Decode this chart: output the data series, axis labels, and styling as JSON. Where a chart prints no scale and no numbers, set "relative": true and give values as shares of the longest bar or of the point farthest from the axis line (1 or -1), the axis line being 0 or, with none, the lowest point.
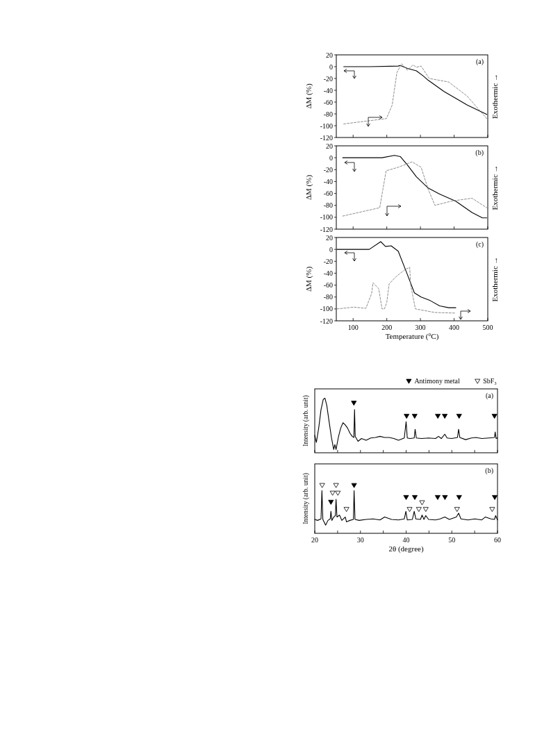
{
  "chart_data": [
    {
      "type": "line",
      "ylabel": "ΔM  (%)",
      "y2label": "Exothermic →",
      "annotations": [
        "(a)"
      ],
      "xlim": [
        50,
        500
      ],
      "xticks": [
        100,
        200,
        300,
        400,
        500
      ],
      "ylim": [
        -120,
        20
      ],
      "yticks": [
        -120,
        -100,
        -80,
        -60,
        -40,
        -20,
        0,
        20
      ],
      "tick_labels": "y",
      "series": [
        {
          "color": "#000000",
          "line_style": "solid",
          "x": [
            72,
            150,
            234,
            240,
            261,
            288,
            309,
            323,
            370,
            439,
            497
          ],
          "values": [
            0,
            0,
            1,
            2,
            -3,
            -7,
            -16,
            -23,
            -42,
            -65,
            -81
          ]
        },
        {
          "color": "#808080",
          "line_style": "dashed",
          "x": [
            72,
            199,
            216,
            230,
            244,
            261,
            278,
            288,
            302,
            326,
            384,
            439,
            497
          ],
          "values": [
            -97,
            -88,
            -65,
            -10,
            5,
            -6,
            3,
            -1,
            1,
            -20,
            -26,
            -50,
            -88
          ]
        }
      ]
    },
    {
      "type": "line",
      "ylabel": "ΔM  (%)",
      "y2label": "Exothermic →",
      "annotations": [
        "(b)"
      ],
      "xlim": [
        50,
        500
      ],
      "xticks": [
        100,
        200,
        300,
        400,
        500
      ],
      "ylim": [
        -120,
        20
      ],
      "yticks": [
        -120,
        -100,
        -80,
        -60,
        -40,
        -20,
        0,
        20
      ],
      "tick_labels": "y",
      "series": [
        {
          "color": "#000000",
          "line_style": "solid",
          "x": [
            69,
            186,
            223,
            240,
            261,
            288,
            323,
            357,
            405,
            453,
            484,
            497
          ],
          "values": [
            0,
            0,
            4,
            2,
            -12,
            -32,
            -51,
            -61,
            -73,
            -92,
            -101,
            -101
          ]
        },
        {
          "color": "#808080",
          "line_style": "dashed",
          "x": [
            69,
            179,
            198,
            234,
            275,
            302,
            323,
            343,
            391,
            453,
            497
          ],
          "values": [
            -98,
            -84,
            -22,
            -16,
            -7,
            -16,
            -53,
            -80,
            -73,
            -68,
            -84
          ]
        }
      ]
    },
    {
      "type": "line",
      "xlabel": "Temperature ($^{o}$C)",
      "ylabel": "ΔM  (%)",
      "y2label": "Exothermic →",
      "annotations": [
        "(c)"
      ],
      "xlim": [
        50,
        500
      ],
      "xticks": [
        100,
        200,
        300,
        400,
        500
      ],
      "ylim": [
        -120,
        20
      ],
      "yticks": [
        -120,
        -100,
        -80,
        -60,
        -40,
        -20,
        0,
        20
      ],
      "series": [
        {
          "color": "#000000",
          "line_style": "solid",
          "x": [
            52,
            148,
            182,
            196,
            213,
            234,
            261,
            282,
            302,
            329,
            357,
            384,
            405
          ],
          "values": [
            0,
            0,
            13,
            5,
            6,
            -3,
            -42,
            -73,
            -80,
            -86,
            -95,
            -98,
            -98
          ]
        },
        {
          "color": "#808080",
          "line_style": "dashed",
          "x": [
            52,
            103,
            138,
            155,
            159,
            176,
            186,
            193,
            200,
            207,
            227,
            254,
            268,
            271,
            285,
            343,
            405
          ],
          "values": [
            -100,
            -97,
            -99,
            -74,
            -56,
            -66,
            -100,
            -100,
            -89,
            -58,
            -46,
            -34,
            -30,
            -60,
            -100,
            -106,
            -107
          ]
        }
      ]
    },
    {
      "type": "line",
      "relative": true,
      "ylabel": "Intensity (arb. unit)",
      "annotations": [
        "(a)"
      ],
      "xlim": [
        20,
        60
      ],
      "xticks": [
        20,
        {
          "value": 25,
          "label": null
        },
        30,
        {
          "value": 35,
          "label": null
        },
        40,
        {
          "value": 45,
          "label": null
        },
        50,
        {
          "value": 55,
          "label": null
        },
        60
      ],
      "tick_labels": false,
      "legend": "top right",
      "series": [
        {
          "color": "#000000",
          "x": [
            20,
            20.35,
            20.86,
            21.37,
            21.87,
            22.23,
            22.63,
            23.14,
            23.65,
            24.15,
            24.4,
            24.66,
            25.16,
            25.67,
            26.18,
            26.68,
            27.19,
            27.7,
            28.2,
            28.56,
            28.71,
            28.86,
            29.47,
            30.23,
            31.24,
            32.25,
            33.27,
            34.28,
            35.29,
            36.3,
            37.32,
            38.33,
            39.6,
            40,
            40.25,
            40.86,
            41.77,
            41.97,
            42.23,
            43.39,
            44.91,
            46.43,
            47.09,
            47.7,
            48.46,
            48.96,
            49.97,
            51.24,
            51.49,
            51.75,
            53.01,
            54.28,
            55.29,
            56.56,
            58.08,
            59.34,
            59.49,
            59.7,
            60
          ],
          "values": [
            0.32,
            0.19,
            0.45,
            0.79,
            0.98,
            1,
            0.87,
            0.57,
            0.28,
            0.06,
            0.15,
            0.06,
            0.28,
            0.45,
            0.55,
            0.51,
            0.45,
            0.36,
            0.3,
            0.28,
            0.79,
            0.3,
            0.21,
            0.26,
            0.23,
            0.27,
            0.28,
            0.3,
            0.28,
            0.28,
            0.26,
            0.23,
            0.27,
            0.57,
            0.27,
            0.26,
            0.27,
            0.43,
            0.27,
            0.26,
            0.27,
            0.26,
            0.3,
            0.26,
            0.34,
            0.27,
            0.26,
            0.28,
            0.43,
            0.28,
            0.24,
            0.27,
            0.28,
            0.26,
            0.27,
            0.28,
            0.38,
            0.26,
            0.27
          ]
        },
        {
          "type": "scatter",
          "name": "Antimony metal",
          "color": "#000000",
          "marker": "triangle",
          "x": [
            28.56,
            40.1,
            41.87,
            46.94,
            48.46,
            51.6,
            59.34
          ],
          "values": [
            0.91,
            0.67,
            0.67,
            0.67,
            0.67,
            0.67,
            0.67
          ]
        },
        {
          "type": "scatter",
          "name": "SbF₃",
          "color": "#ffffff",
          "marker": "triangle"
        }
      ]
    },
    {
      "type": "line",
      "relative": true,
      "xlabel": "2θ (degree)",
      "ylabel": "Intensity (arb. unit)",
      "annotations": [
        "(b)"
      ],
      "xlim": [
        20,
        60
      ],
      "xticks": [
        20,
        {
          "value": 25,
          "label": null
        },
        30,
        {
          "value": 35,
          "label": null
        },
        40,
        {
          "value": 45,
          "label": null
        },
        50,
        {
          "value": 55,
          "label": null
        },
        60
      ],
      "tick_labels": "x",
      "series": [
        {
          "color": "#000000",
          "x": [
            20,
            20.61,
            21.37,
            21.57,
            21.77,
            22.38,
            22.89,
            23.39,
            23.54,
            23.75,
            24.15,
            24.51,
            24.66,
            24.86,
            25.42,
            25.92,
            26.68,
            26.94,
            27.7,
            28.46,
            28.61,
            28.81,
            29.72,
            31.24,
            32.76,
            34.28,
            35.29,
            36.81,
            38.33,
            39.6,
            39.95,
            40.25,
            41.37,
            41.77,
            42.13,
            43.14,
            43.49,
            43.9,
            44.3,
            44.91,
            46.43,
            47.44,
            48.46,
            49.47,
            50.99,
            51.49,
            52,
            53.52,
            55.04,
            56.56,
            57.32,
            58.58,
            59.34,
            59.59,
            60
          ],
          "values": [
            0.29,
            0.27,
            0.3,
            0.89,
            0.29,
            0.17,
            0.27,
            0.3,
            0.46,
            0.27,
            0.34,
            0.37,
            0.71,
            0.34,
            0.38,
            0.27,
            0.34,
            0.24,
            0.27,
            0.29,
            0.89,
            0.29,
            0.27,
            0.29,
            0.3,
            0.28,
            0.34,
            0.29,
            0.28,
            0.3,
            0.46,
            0.28,
            0.29,
            0.46,
            0.3,
            0.29,
            0.38,
            0.29,
            0.37,
            0.29,
            0.28,
            0.3,
            0.34,
            0.29,
            0.34,
            0.42,
            0.3,
            0.28,
            0.3,
            0.28,
            0.34,
            0.3,
            0.29,
            0.37,
            0.28
          ]
        },
        {
          "type": "scatter",
          "color": "#000000",
          "marker": "triangle",
          "x": [
            23.54,
            28.61,
            40.0,
            41.9,
            46.9,
            48.5,
            51.6,
            59.4
          ],
          "values": [
            0.65,
            1.0,
            0.75,
            0.75,
            0.75,
            0.75,
            0.75,
            0.75
          ]
        },
        {
          "type": "scatter",
          "color": "#ffffff",
          "marker": "triangle",
          "x": [
            21.62,
            23.9,
            24.66,
            25.06,
            26.94,
            40.76,
            42.78,
            43.49,
            44.3,
            51.14,
            58.84
          ],
          "values": [
            1.0,
            0.84,
            1.0,
            0.84,
            0.5,
            0.5,
            0.5,
            0.64,
            0.5,
            0.5,
            0.5
          ]
        }
      ]
    }
  ]
}
